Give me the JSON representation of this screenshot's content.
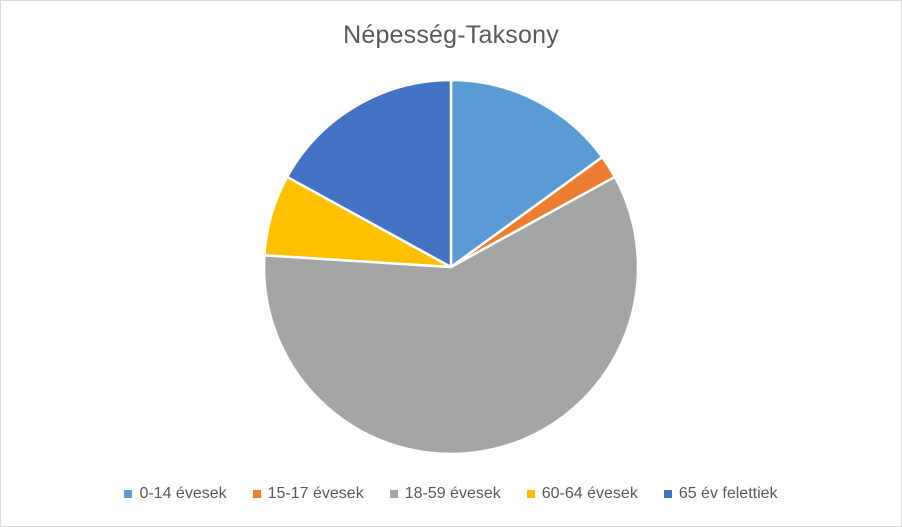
{
  "chart_data": {
    "type": "pie",
    "title": "Népesség-Taksony",
    "categories": [
      "0-14 évesek",
      "15-17 évesek",
      "18-59 évesek",
      "60-64 évesek",
      "65 év felettiek"
    ],
    "values": [
      15,
      2,
      59,
      7,
      17
    ],
    "unit": "",
    "colors": [
      "#5b9bd5",
      "#ed7d31",
      "#a5a5a5",
      "#ffc000",
      "#4472c4"
    ],
    "legend_position": "bottom",
    "start_angle_deg": 0,
    "direction": "clockwise"
  }
}
